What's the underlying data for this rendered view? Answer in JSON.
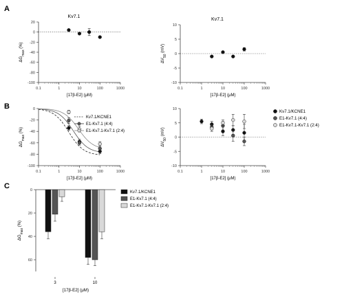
{
  "panels": {
    "A": "A",
    "B": "B",
    "C": "C"
  },
  "colors": {
    "black": "#111111",
    "dark_gray": "#555555",
    "light_gray": "#d9d9d9",
    "error": "#333333"
  },
  "chart_data": [
    {
      "id": "A-left",
      "type": "scatter",
      "title": "Kv7.1",
      "xlabel": "[17β-E2] (μM)",
      "ylabel": "ΔG_max (%)",
      "xscale": "log",
      "xlim": [
        0.1,
        1000
      ],
      "ylim": [
        -100,
        20
      ],
      "xticks": [
        "0.1",
        "1",
        "10",
        "100",
        "1000"
      ],
      "yticks": [
        "20",
        "0",
        "-20",
        "-40",
        "-60",
        "-80",
        "-100"
      ],
      "zero_line": true,
      "series": [
        {
          "points": [
            {
              "x": 3,
              "y": 4,
              "err": 0
            },
            {
              "x": 10,
              "y": -3,
              "err": 0
            },
            {
              "x": 30,
              "y": 0,
              "err": 7
            },
            {
              "x": 100,
              "y": -10,
              "err": 0
            }
          ]
        }
      ]
    },
    {
      "id": "A-right",
      "type": "scatter",
      "title": "Kv7.1",
      "xlabel": "[17β-E2] (μM)",
      "ylabel": "ΔV_50 (mV)",
      "xscale": "log",
      "xlim": [
        0.1,
        1000
      ],
      "ylim": [
        -10,
        10
      ],
      "xticks": [
        "0.1",
        "1",
        "10",
        "100",
        "1000"
      ],
      "yticks": [
        "10",
        "5",
        "0",
        "-5",
        "-10"
      ],
      "zero_line": true,
      "series": [
        {
          "points": [
            {
              "x": 3,
              "y": -1,
              "err": 0
            },
            {
              "x": 10,
              "y": 0.5,
              "err": 0
            },
            {
              "x": 30,
              "y": -1,
              "err": 0
            },
            {
              "x": 100,
              "y": 1.5,
              "err": 0.6
            }
          ]
        }
      ]
    },
    {
      "id": "B-left",
      "type": "scatter",
      "xlabel": "[17β-E2] (μM)",
      "ylabel": "ΔG_max (%)",
      "xscale": "log",
      "xlim": [
        0.1,
        1000
      ],
      "ylim": [
        -100,
        0
      ],
      "xticks": [
        "0.1",
        "1",
        "10",
        "100",
        "1000"
      ],
      "yticks": [
        "0",
        "-20",
        "-40",
        "-60",
        "-80",
        "-100"
      ],
      "legend_position": "upper-right",
      "series": [
        {
          "name": "Kv7.1/KCNE1",
          "marker": "black",
          "line": "dashed",
          "points": [
            {
              "x": 3,
              "y": -34,
              "err": 4
            },
            {
              "x": 10,
              "y": -58,
              "err": 4
            },
            {
              "x": 100,
              "y": -75,
              "err": 4
            }
          ]
        },
        {
          "name": "E1-Kv7.1 (4:4)",
          "marker": "dark",
          "line": "solid",
          "points": [
            {
              "x": 3,
              "y": -21,
              "err": 5
            },
            {
              "x": 10,
              "y": -60,
              "err": 4
            },
            {
              "x": 100,
              "y": -70,
              "err": 4
            }
          ]
        },
        {
          "name": "E1-Kv7.1-Kv7.1 (2:4)",
          "marker": "light",
          "line": "solid",
          "points": [
            {
              "x": 3,
              "y": -6,
              "err": 3
            },
            {
              "x": 10,
              "y": -36,
              "err": 5
            },
            {
              "x": 100,
              "y": -62,
              "err": 4
            }
          ]
        }
      ]
    },
    {
      "id": "B-right",
      "type": "scatter",
      "xlabel": "[17β-E2] (μM)",
      "ylabel": "ΔV_50 (mV)",
      "xscale": "log",
      "xlim": [
        0.1,
        1000
      ],
      "ylim": [
        -10,
        10
      ],
      "xticks": [
        "0.1",
        "1",
        "10",
        "100",
        "1000"
      ],
      "yticks": [
        "10",
        "5",
        "0",
        "-5",
        "-10"
      ],
      "zero_line": true,
      "legend_position": "right-outside",
      "series": [
        {
          "name": "Kv7.1/KCNE1",
          "marker": "black",
          "points": [
            {
              "x": 1,
              "y": 5.5,
              "err": 0.8
            },
            {
              "x": 3,
              "y": 4.5,
              "err": 1
            },
            {
              "x": 10,
              "y": 2,
              "err": 1.5
            },
            {
              "x": 30,
              "y": 2.5,
              "err": 1.5
            },
            {
              "x": 100,
              "y": 1.5,
              "err": 3
            }
          ]
        },
        {
          "name": "E1-Kv7.1 (4:4)",
          "marker": "dark",
          "points": [
            {
              "x": 3,
              "y": 3.5,
              "err": 1
            },
            {
              "x": 10,
              "y": 4,
              "err": 1.5
            },
            {
              "x": 30,
              "y": 0.5,
              "err": 2
            },
            {
              "x": 100,
              "y": -1.5,
              "err": 1.5
            }
          ]
        },
        {
          "name": "E1-Kv7.1-Kv7.1 (2:4)",
          "marker": "light",
          "points": [
            {
              "x": 3,
              "y": 3,
              "err": 1
            },
            {
              "x": 10,
              "y": 5,
              "err": 1
            },
            {
              "x": 30,
              "y": 6,
              "err": 2
            },
            {
              "x": 100,
              "y": 5.5,
              "err": 2.5
            }
          ]
        }
      ]
    },
    {
      "id": "C",
      "type": "bar",
      "xlabel": "[17β-E2] (μM)",
      "ylabel": "ΔG_max (%)",
      "ylim": [
        -70,
        0
      ],
      "yticks": [
        "0",
        "20",
        "40",
        "60"
      ],
      "categories": [
        "3",
        "10"
      ],
      "legend_position": "right-outside",
      "series": [
        {
          "name": "Kv7.1/KCNE1",
          "fill": "black",
          "values": [
            -36,
            -58
          ],
          "err": [
            6,
            6
          ]
        },
        {
          "name": "E1-Kv7.1 (4:4)",
          "fill": "dark",
          "values": [
            -21,
            -60
          ],
          "err": [
            6,
            5
          ]
        },
        {
          "name": "E1-Kv7.1-Kv7.1 (2:4)",
          "fill": "light",
          "values": [
            -6,
            -36
          ],
          "err": [
            4,
            6
          ]
        }
      ]
    }
  ]
}
